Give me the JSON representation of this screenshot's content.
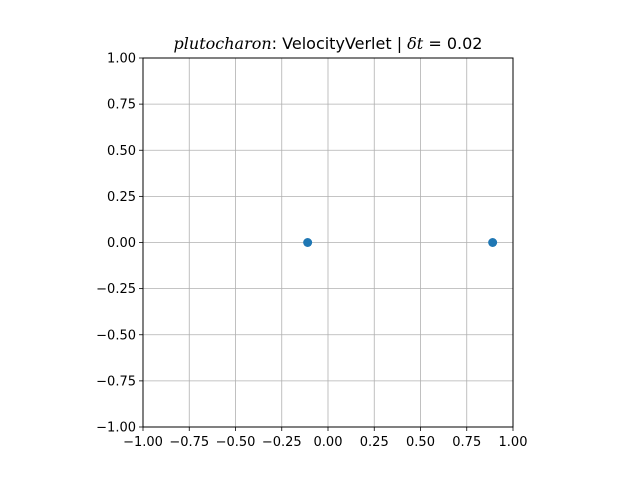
{
  "chart_data": {
    "type": "scatter",
    "title": {
      "system": "plutocharon",
      "separator": ": ",
      "method": "VelocityVerlet",
      "divider": " | ",
      "dt_symbol": "δt",
      "dt_equals": " = ",
      "dt_value": "0.02"
    },
    "xlabel": "",
    "ylabel": "",
    "xlim": [
      -1.0,
      1.0
    ],
    "ylim": [
      -1.0,
      1.0
    ],
    "x_ticks": [
      -1.0,
      -0.75,
      -0.5,
      -0.25,
      0.0,
      0.25,
      0.5,
      0.75,
      1.0
    ],
    "y_ticks": [
      -1.0,
      -0.75,
      -0.5,
      -0.25,
      0.0,
      0.25,
      0.5,
      0.75,
      1.0
    ],
    "x_tick_labels": [
      "−1.00",
      "−0.75",
      "−0.50",
      "−0.25",
      "0.00",
      "0.25",
      "0.50",
      "0.75",
      "1.00"
    ],
    "y_tick_labels": [
      "−1.00",
      "−0.75",
      "−0.50",
      "−0.25",
      "0.00",
      "0.25",
      "0.50",
      "0.75",
      "1.00"
    ],
    "grid": true,
    "series": [
      {
        "color": "#1f77b4",
        "points": [
          {
            "x": -0.11,
            "y": 0.0
          },
          {
            "x": 0.89,
            "y": 0.0
          }
        ]
      }
    ]
  }
}
